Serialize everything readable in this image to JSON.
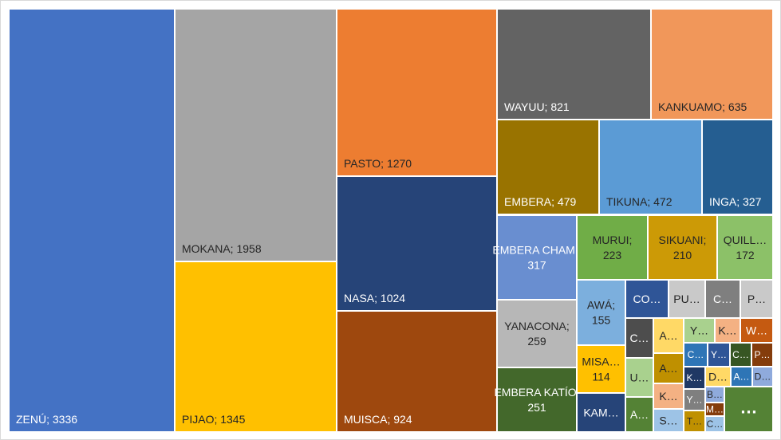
{
  "chart_data": {
    "type": "treemap",
    "title": "",
    "label_separator": "; ",
    "items": [
      {
        "label": "ZENÚ",
        "value": 3336,
        "display": "ZENÚ; 3336",
        "color": "#4472C4"
      },
      {
        "label": "MOKANA",
        "value": 1958,
        "display": "MOKANA; 1958",
        "color": "#A5A5A5"
      },
      {
        "label": "PIJAO",
        "value": 1345,
        "display": "PIJAO; 1345",
        "color": "#FFC000"
      },
      {
        "label": "PASTO",
        "value": 1270,
        "display": "PASTO; 1270",
        "color": "#ED7D31"
      },
      {
        "label": "NASA",
        "value": 1024,
        "display": "NASA; 1024",
        "color": "#264478"
      },
      {
        "label": "MUISCA",
        "value": 924,
        "display": "MUISCA; 924",
        "color": "#9E480E"
      },
      {
        "label": "WAYUU",
        "value": 821,
        "display": "WAYUU; 821",
        "color": "#636363"
      },
      {
        "label": "KANKUAMO",
        "value": 635,
        "display": "KANKUAMO; 635",
        "color": "#F1975A"
      },
      {
        "label": "EMBERA",
        "value": 479,
        "display": "EMBERA; 479",
        "color": "#997300"
      },
      {
        "label": "TIKUNA",
        "value": 472,
        "display": "TIKUNA; 472",
        "color": "#5B9BD5"
      },
      {
        "label": "INGA",
        "value": 327,
        "display": "INGA; 327",
        "color": "#255E91"
      },
      {
        "label": "EMBERA CHAMÍ",
        "value": 317,
        "display": "EMBERA CHAMÍ; 317",
        "color": "#698ED0"
      },
      {
        "label": "YANACONA",
        "value": 259,
        "display": "YANACONA; 259",
        "color": "#B7B7B7"
      },
      {
        "label": "EMBERA KATÍO",
        "value": 251,
        "display": "EMBERA KATÍO; 251",
        "color": "#43682B"
      },
      {
        "label": "MURUI",
        "value": 223,
        "display": "MURUI; 223",
        "color": "#70AD47"
      },
      {
        "label": "SIKUANI",
        "value": 210,
        "display": "SIKUANI; 210",
        "color": "#CC9A06"
      },
      {
        "label": "QUILL…",
        "value": 172,
        "display": "QUILL… 172",
        "color": "#8CC168"
      },
      {
        "label": "AWÁ",
        "value": 155,
        "display": "AWÁ; 155",
        "color": "#7CAFDD"
      },
      {
        "label": "MISA…",
        "value": 114,
        "display": "MISA… 114",
        "color": "#FFC000"
      },
      {
        "label": "KAM…",
        "value": null,
        "display": "KAM…",
        "color": "#264478"
      },
      {
        "label": "CO…",
        "value": null,
        "display": "CO…",
        "color": "#2F5597"
      },
      {
        "label": "PU…",
        "value": null,
        "display": "PU…",
        "color": "#C9C9C9"
      },
      {
        "label": "C…",
        "value": null,
        "display": "C…",
        "color": "#7F7F7F"
      },
      {
        "label": "P…",
        "value": null,
        "display": "P…",
        "color": "#C9C9C9"
      },
      {
        "label": "C…",
        "value": null,
        "display": "C…",
        "color": "#4D4D4D"
      },
      {
        "label": "A…",
        "value": null,
        "display": "A…",
        "color": "#FFD966"
      },
      {
        "label": "Y…",
        "value": null,
        "display": "Y…",
        "color": "#A9D18E"
      },
      {
        "label": "K…",
        "value": null,
        "display": "K…",
        "color": "#F4B183"
      },
      {
        "label": "W…",
        "value": null,
        "display": "W…",
        "color": "#C55A11"
      },
      {
        "label": "U…",
        "value": null,
        "display": "U…",
        "color": "#A9D18E"
      },
      {
        "label": "A…",
        "value": null,
        "display": "A…",
        "color": "#BF9000"
      },
      {
        "label": "C…",
        "value": null,
        "display": "C…",
        "color": "#2E75B6"
      },
      {
        "label": "Y…",
        "value": null,
        "display": "Y…",
        "color": "#2F5597"
      },
      {
        "label": "C…",
        "value": null,
        "display": "C…",
        "color": "#375623"
      },
      {
        "label": "P…",
        "value": null,
        "display": "P…",
        "color": "#843C0C"
      },
      {
        "label": "A…",
        "value": null,
        "display": "A…",
        "color": "#548235"
      },
      {
        "label": "K…",
        "value": null,
        "display": "K…",
        "color": "#F4B183"
      },
      {
        "label": "K…",
        "value": null,
        "display": "K…",
        "color": "#1F3864"
      },
      {
        "label": "D…",
        "value": null,
        "display": "D…",
        "color": "#FFD966"
      },
      {
        "label": "A…",
        "value": null,
        "display": "A…",
        "color": "#2E75B6"
      },
      {
        "label": "D…",
        "value": null,
        "display": "D…",
        "color": "#8FAADC"
      },
      {
        "label": "S…",
        "value": null,
        "display": "S…",
        "color": "#9DC3E6"
      },
      {
        "label": "Y…",
        "value": null,
        "display": "Y…",
        "color": "#7F7F7F"
      },
      {
        "label": "T…",
        "value": null,
        "display": "T…",
        "color": "#BF9000"
      },
      {
        "label": "B…",
        "value": null,
        "display": "B…",
        "color": "#8FAADC"
      },
      {
        "label": "M…",
        "value": null,
        "display": "M…",
        "color": "#843C0C"
      },
      {
        "label": "C…",
        "value": null,
        "display": "C…",
        "color": "#9DC3E6"
      },
      {
        "label": "…",
        "value": null,
        "display": "…",
        "color": "#548235"
      }
    ]
  }
}
